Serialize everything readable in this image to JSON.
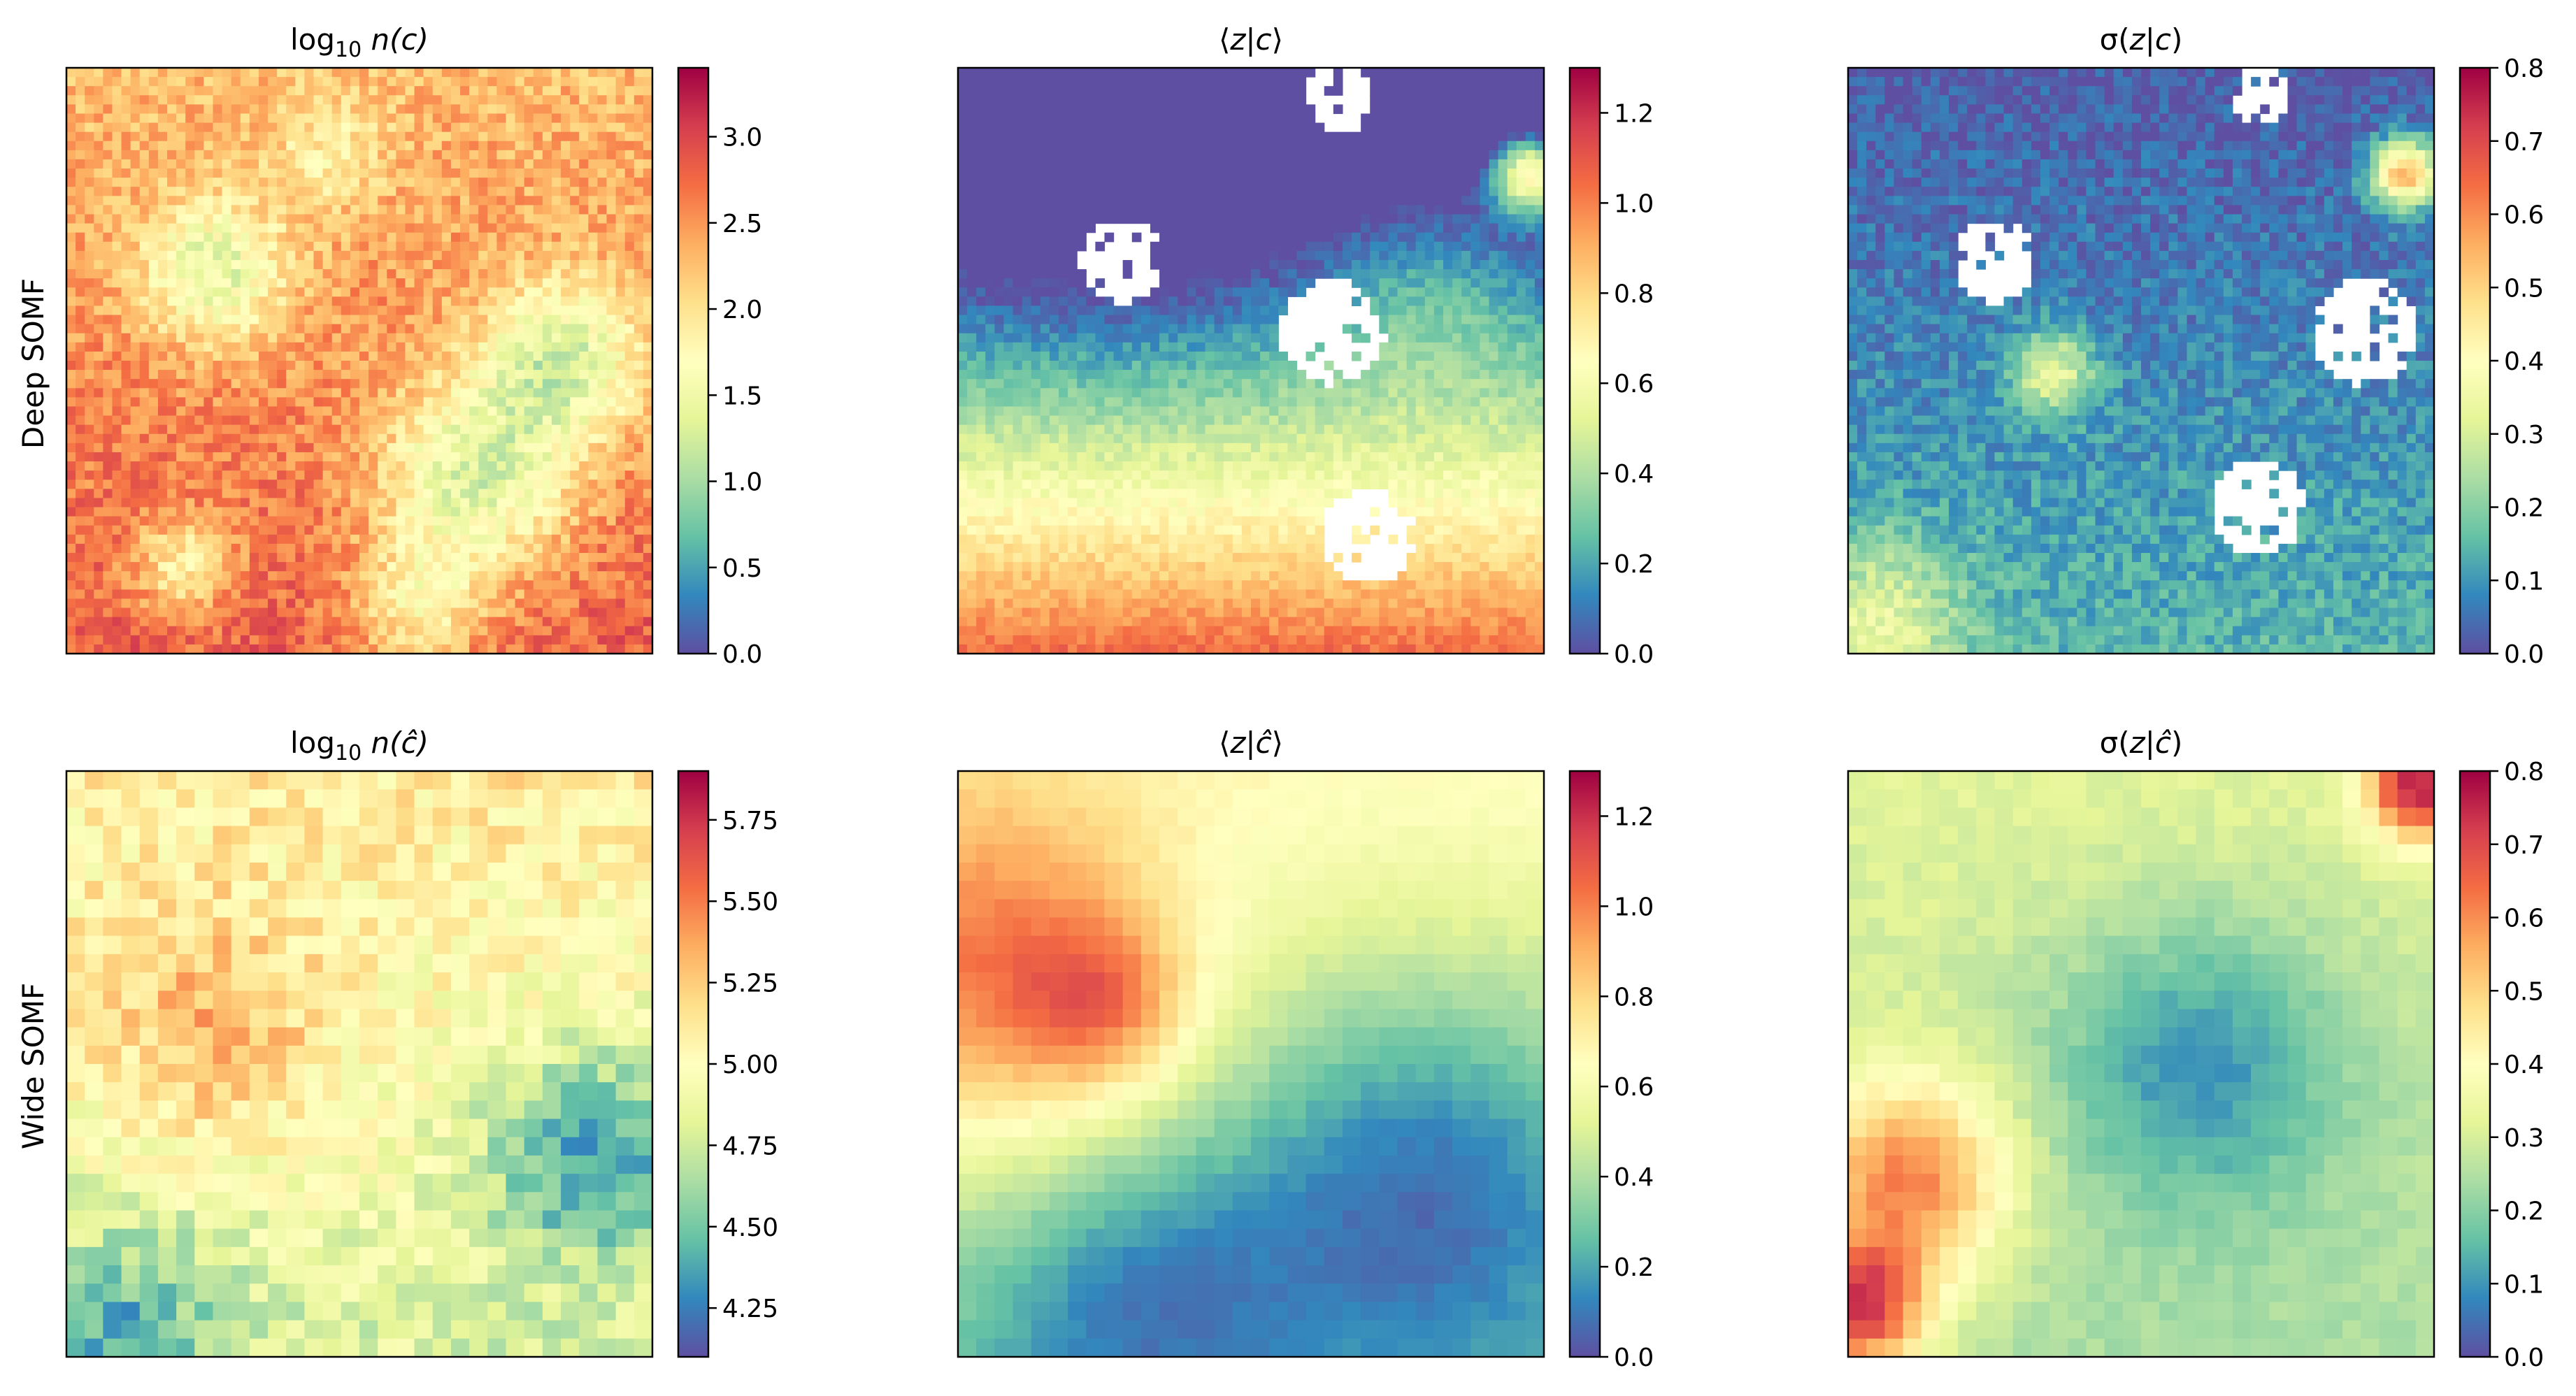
{
  "figure": {
    "row_labels": [
      "Deep SOMF",
      "Wide SOMF"
    ]
  },
  "chart_data": [
    {
      "type": "heatmap",
      "title": "log10 n(c)",
      "title_parts": [
        "log",
        "10",
        " n(c)"
      ],
      "row": "Deep SOMF",
      "grid": [
        64,
        64
      ],
      "colormap": "Spectral_r",
      "colorbar_range": [
        0.0,
        3.4
      ],
      "colorbar_ticks": [
        "0.0",
        "0.5",
        "1.0",
        "1.5",
        "2.0",
        "2.5",
        "3.0"
      ],
      "colorbar_tick_values": [
        0.0,
        0.5,
        1.0,
        1.5,
        2.0,
        2.5,
        3.0
      ],
      "xlabel": "",
      "ylabel": "",
      "field": {
        "base": 2.55,
        "grad": 0.35,
        "noise": 0.28,
        "blobs": [
          [
            0.25,
            0.35,
            0.09,
            -1.1
          ],
          [
            0.7,
            0.7,
            0.12,
            -1.3
          ],
          [
            0.85,
            0.5,
            0.1,
            -1.2
          ],
          [
            0.2,
            0.85,
            0.06,
            -0.9
          ],
          [
            0.45,
            0.15,
            0.07,
            -0.5
          ],
          [
            0.6,
            0.92,
            0.08,
            -0.9
          ]
        ],
        "seed": 11
      }
    },
    {
      "type": "heatmap",
      "title": "⟨z|c⟩",
      "title_parts": [
        "⟨",
        "z",
        "|",
        "c",
        "⟩"
      ],
      "row": "Deep SOMF",
      "grid": [
        64,
        64
      ],
      "colormap": "Spectral_r",
      "colorbar_range": [
        0.0,
        1.3
      ],
      "colorbar_ticks": [
        "0.0",
        "0.2",
        "0.4",
        "0.6",
        "0.8",
        "1.0",
        "1.2"
      ],
      "colorbar_tick_values": [
        0.0,
        0.2,
        0.4,
        0.6,
        0.8,
        1.0,
        1.2
      ],
      "xlabel": "",
      "ylabel": "",
      "field": {
        "base": 0.25,
        "grad": 1.0,
        "noise": 0.06,
        "blobs": [
          [
            0.25,
            0.25,
            0.18,
            -0.1
          ],
          [
            0.8,
            0.35,
            0.15,
            0.2
          ],
          [
            0.98,
            0.18,
            0.05,
            0.9
          ]
        ],
        "seed": 23,
        "holes": [
          [
            0.28,
            0.33,
            0.07
          ],
          [
            0.64,
            0.45,
            0.09
          ],
          [
            0.7,
            0.8,
            0.08
          ],
          [
            0.65,
            0.05,
            0.06
          ]
        ]
      }
    },
    {
      "type": "heatmap",
      "title": "σ(z|c)",
      "title_parts": [
        "σ(",
        "z",
        "|",
        "c",
        ")"
      ],
      "row": "Deep SOMF",
      "grid": [
        64,
        64
      ],
      "colormap": "Spectral_r",
      "colorbar_range": [
        0.0,
        0.8
      ],
      "colorbar_ticks": [
        "0.0",
        "0.1",
        "0.2",
        "0.3",
        "0.4",
        "0.5",
        "0.6",
        "0.7",
        "0.8"
      ],
      "colorbar_tick_values": [
        0.0,
        0.1,
        0.2,
        0.3,
        0.4,
        0.5,
        0.6,
        0.7,
        0.8
      ],
      "xlabel": "",
      "ylabel": "",
      "field": {
        "base": 0.08,
        "grad": 0.08,
        "noise": 0.05,
        "blobs": [
          [
            0.35,
            0.52,
            0.05,
            0.25
          ],
          [
            0.95,
            0.18,
            0.04,
            0.5
          ],
          [
            0.05,
            0.95,
            0.1,
            0.2
          ]
        ],
        "seed": 37,
        "holes": [
          [
            0.25,
            0.33,
            0.07
          ],
          [
            0.88,
            0.45,
            0.09
          ],
          [
            0.7,
            0.75,
            0.08
          ],
          [
            0.7,
            0.05,
            0.05
          ]
        ]
      }
    },
    {
      "type": "heatmap",
      "title": "log10 n(ĉ)",
      "title_parts": [
        "log",
        "10",
        " n(ĉ)"
      ],
      "row": "Wide SOMF",
      "grid": [
        32,
        32
      ],
      "colormap": "Spectral_r",
      "colorbar_range": [
        4.1,
        5.9
      ],
      "colorbar_ticks": [
        "4.25",
        "4.50",
        "4.75",
        "5.00",
        "5.25",
        "5.50",
        "5.75"
      ],
      "colorbar_tick_values": [
        4.25,
        4.5,
        4.75,
        5.0,
        5.25,
        5.5,
        5.75
      ],
      "xlabel": "",
      "ylabel": "",
      "field": {
        "base": 4.95,
        "grad": -0.2,
        "noise": 0.16,
        "blobs": [
          [
            0.25,
            0.45,
            0.15,
            0.35
          ],
          [
            0.9,
            0.65,
            0.12,
            -0.6
          ],
          [
            0.1,
            0.95,
            0.12,
            -0.4
          ]
        ],
        "seed": 51
      }
    },
    {
      "type": "heatmap",
      "title": "⟨z|ĉ⟩",
      "title_parts": [
        "⟨",
        "z",
        "|",
        "ĉ",
        "⟩"
      ],
      "row": "Wide SOMF",
      "grid": [
        32,
        32
      ],
      "colormap": "Spectral_r",
      "colorbar_range": [
        0.0,
        1.3
      ],
      "colorbar_ticks": [
        "0.0",
        "0.2",
        "0.4",
        "0.6",
        "0.8",
        "1.0",
        "1.2"
      ],
      "colorbar_tick_values": [
        0.0,
        0.2,
        0.4,
        0.6,
        0.8,
        1.0,
        1.2
      ],
      "xlabel": "",
      "ylabel": "",
      "field": {
        "base": 0.5,
        "grad": -0.2,
        "noise": 0.02,
        "blobs": [
          [
            0.05,
            0.35,
            0.22,
            0.45
          ],
          [
            0.25,
            0.4,
            0.1,
            0.3
          ],
          [
            0.8,
            0.7,
            0.25,
            -0.35
          ],
          [
            0.3,
            0.9,
            0.2,
            -0.25
          ]
        ],
        "seed": 67
      }
    },
    {
      "type": "heatmap",
      "title": "σ(z|ĉ)",
      "title_parts": [
        "σ(",
        "z",
        "|",
        "ĉ",
        ")"
      ],
      "row": "Wide SOMF",
      "grid": [
        32,
        32
      ],
      "colormap": "Spectral_r",
      "colorbar_range": [
        0.0,
        0.8
      ],
      "colorbar_ticks": [
        "0.0",
        "0.1",
        "0.2",
        "0.3",
        "0.4",
        "0.5",
        "0.6",
        "0.7",
        "0.8"
      ],
      "colorbar_tick_values": [
        0.0,
        0.1,
        0.2,
        0.3,
        0.4,
        0.5,
        0.6,
        0.7,
        0.8
      ],
      "xlabel": "",
      "ylabel": "",
      "field": {
        "base": 0.28,
        "grad": -0.05,
        "noise": 0.02,
        "blobs": [
          [
            0.1,
            0.7,
            0.12,
            0.35
          ],
          [
            0.02,
            0.92,
            0.08,
            0.45
          ],
          [
            0.97,
            0.03,
            0.06,
            0.45
          ],
          [
            0.6,
            0.5,
            0.18,
            -0.18
          ]
        ],
        "seed": 79
      }
    }
  ]
}
